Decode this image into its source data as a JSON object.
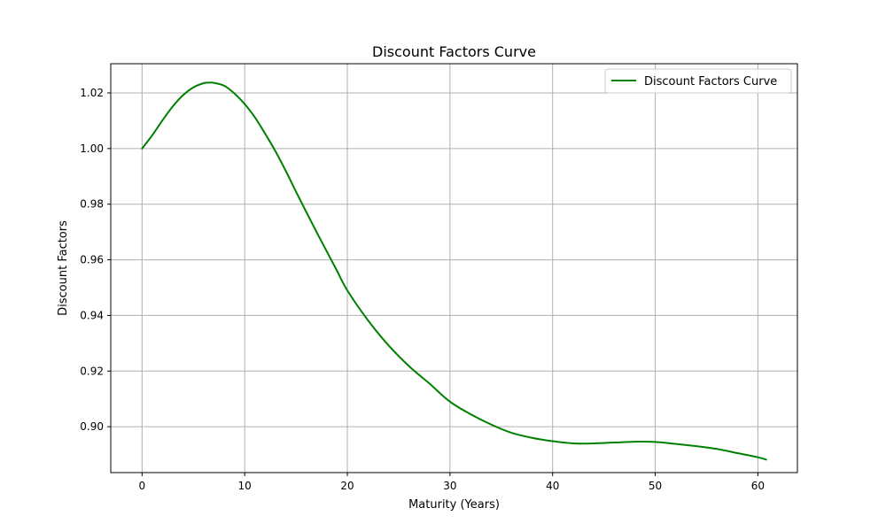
{
  "chart_data": {
    "type": "line",
    "title": "Discount Factors Curve",
    "xlabel": "Maturity (Years)",
    "ylabel": "Discount Factors",
    "xlim": [
      -3.05,
      63.85
    ],
    "ylim": [
      0.8835,
      1.0305
    ],
    "xticks": [
      0,
      10,
      20,
      30,
      40,
      50,
      60
    ],
    "xtick_labels": [
      "0",
      "10",
      "20",
      "30",
      "40",
      "50",
      "60"
    ],
    "yticks": [
      0.9,
      0.92,
      0.94,
      0.96,
      0.98,
      1.0,
      1.02
    ],
    "ytick_labels": [
      "0.90",
      "0.92",
      "0.94",
      "0.96",
      "0.98",
      "1.00",
      "1.02"
    ],
    "grid": true,
    "legend_position": "upper right",
    "series": [
      {
        "name": "Discount Factors Curve",
        "color": "#008000",
        "x": [
          0,
          1,
          2,
          3,
          4,
          5,
          6,
          6.5,
          7,
          8,
          9,
          10,
          11,
          12,
          13,
          14,
          15,
          16,
          17,
          18,
          19,
          20,
          22,
          24,
          26,
          28,
          30,
          32,
          34,
          36,
          38,
          40,
          42,
          44,
          46,
          48,
          50,
          52,
          54,
          56,
          58,
          60,
          60.8
        ],
        "y": [
          1.0,
          1.0048,
          1.0102,
          1.0152,
          1.0192,
          1.022,
          1.0235,
          1.0237,
          1.0236,
          1.0226,
          1.0198,
          1.016,
          1.0112,
          1.0053,
          0.999,
          0.992,
          0.9845,
          0.9772,
          0.97,
          0.963,
          0.956,
          0.949,
          0.9383,
          0.9293,
          0.9218,
          0.9155,
          0.909,
          0.9045,
          0.9008,
          0.8978,
          0.896,
          0.8948,
          0.894,
          0.894,
          0.8943,
          0.8946,
          0.8945,
          0.8938,
          0.893,
          0.892,
          0.8905,
          0.889,
          0.8882
        ]
      }
    ]
  }
}
